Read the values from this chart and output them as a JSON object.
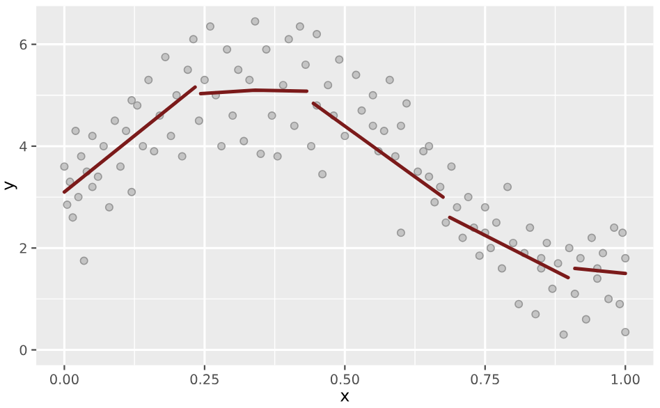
{
  "chart_data": {
    "type": "scatter",
    "xlabel": "x",
    "ylabel": "y",
    "xlim": [
      -0.05,
      1.05
    ],
    "ylim": [
      -0.3,
      6.75
    ],
    "xticks": [
      {
        "value": 0,
        "label": "0.00"
      },
      {
        "value": 0.25,
        "label": "0.25"
      },
      {
        "value": 0.5,
        "label": "0.50"
      },
      {
        "value": 0.75,
        "label": "0.75"
      },
      {
        "value": 1,
        "label": "1.00"
      }
    ],
    "yticks": [
      0,
      2,
      4,
      6
    ],
    "grid": true,
    "series": [
      {
        "marker": "circle",
        "color": "#bdbdbd",
        "x": [
          0.0,
          0.005,
          0.01,
          0.015,
          0.02,
          0.025,
          0.03,
          0.035,
          0.04,
          0.05,
          0.05,
          0.06,
          0.07,
          0.08,
          0.09,
          0.1,
          0.11,
          0.12,
          0.12,
          0.13,
          0.14,
          0.15,
          0.16,
          0.17,
          0.18,
          0.19,
          0.2,
          0.21,
          0.22,
          0.23,
          0.24,
          0.25,
          0.26,
          0.27,
          0.28,
          0.29,
          0.3,
          0.31,
          0.32,
          0.33,
          0.34,
          0.35,
          0.36,
          0.37,
          0.38,
          0.39,
          0.4,
          0.41,
          0.42,
          0.43,
          0.44,
          0.45,
          0.45,
          0.46,
          0.47,
          0.48,
          0.49,
          0.5,
          0.52,
          0.53,
          0.55,
          0.55,
          0.56,
          0.57,
          0.58,
          0.59,
          0.6,
          0.6,
          0.61,
          0.63,
          0.64,
          0.65,
          0.65,
          0.66,
          0.67,
          0.68,
          0.69,
          0.7,
          0.71,
          0.72,
          0.73,
          0.74,
          0.75,
          0.75,
          0.76,
          0.77,
          0.78,
          0.79,
          0.8,
          0.81,
          0.82,
          0.83,
          0.84,
          0.85,
          0.85,
          0.86,
          0.87,
          0.88,
          0.89,
          0.9,
          0.91,
          0.92,
          0.93,
          0.94,
          0.95,
          0.95,
          0.96,
          0.97,
          0.98,
          0.99,
          0.995,
          1.0,
          1.0
        ],
        "values": [
          3.6,
          2.85,
          3.3,
          2.6,
          4.3,
          3.0,
          3.8,
          1.75,
          3.5,
          4.2,
          3.2,
          3.4,
          4.0,
          2.8,
          4.5,
          3.6,
          4.3,
          3.1,
          4.9,
          4.8,
          4.0,
          5.3,
          3.9,
          4.6,
          5.75,
          4.2,
          5.0,
          3.8,
          5.5,
          6.1,
          4.5,
          5.3,
          6.35,
          5.0,
          4.0,
          5.9,
          4.6,
          5.5,
          4.1,
          5.3,
          6.45,
          3.85,
          5.9,
          4.6,
          3.8,
          5.2,
          6.1,
          4.4,
          6.35,
          5.6,
          4.0,
          6.2,
          4.8,
          3.45,
          5.2,
          4.6,
          5.7,
          4.2,
          5.4,
          4.7,
          5.0,
          4.4,
          3.9,
          4.3,
          5.3,
          3.8,
          4.4,
          2.3,
          4.84,
          3.5,
          3.9,
          4.0,
          3.4,
          2.9,
          3.2,
          2.5,
          3.6,
          2.8,
          2.2,
          3.0,
          2.4,
          1.85,
          2.8,
          2.3,
          2.0,
          2.5,
          1.6,
          3.2,
          2.1,
          0.9,
          1.9,
          2.4,
          0.7,
          1.6,
          1.8,
          2.1,
          1.2,
          1.7,
          0.3,
          2.0,
          1.1,
          1.8,
          0.6,
          2.2,
          1.4,
          1.6,
          1.9,
          1.0,
          2.4,
          0.9,
          2.3,
          0.35,
          1.8
        ]
      },
      {
        "type": "line",
        "color": "#7b1a1a",
        "x": [
          0.0,
          0.233
        ],
        "values": [
          3.1,
          5.16
        ]
      },
      {
        "type": "line",
        "color": "#7b1a1a",
        "x": [
          0.243,
          0.34,
          0.432
        ],
        "values": [
          5.03,
          5.1,
          5.08
        ]
      },
      {
        "type": "line",
        "color": "#7b1a1a",
        "x": [
          0.444,
          0.675
        ],
        "values": [
          4.84,
          3.0
        ]
      },
      {
        "type": "line",
        "color": "#7b1a1a",
        "x": [
          0.687,
          0.898
        ],
        "values": [
          2.6,
          1.42
        ]
      },
      {
        "type": "line",
        "color": "#7b1a1a",
        "x": [
          0.91,
          1.0
        ],
        "values": [
          1.6,
          1.5
        ]
      }
    ]
  }
}
